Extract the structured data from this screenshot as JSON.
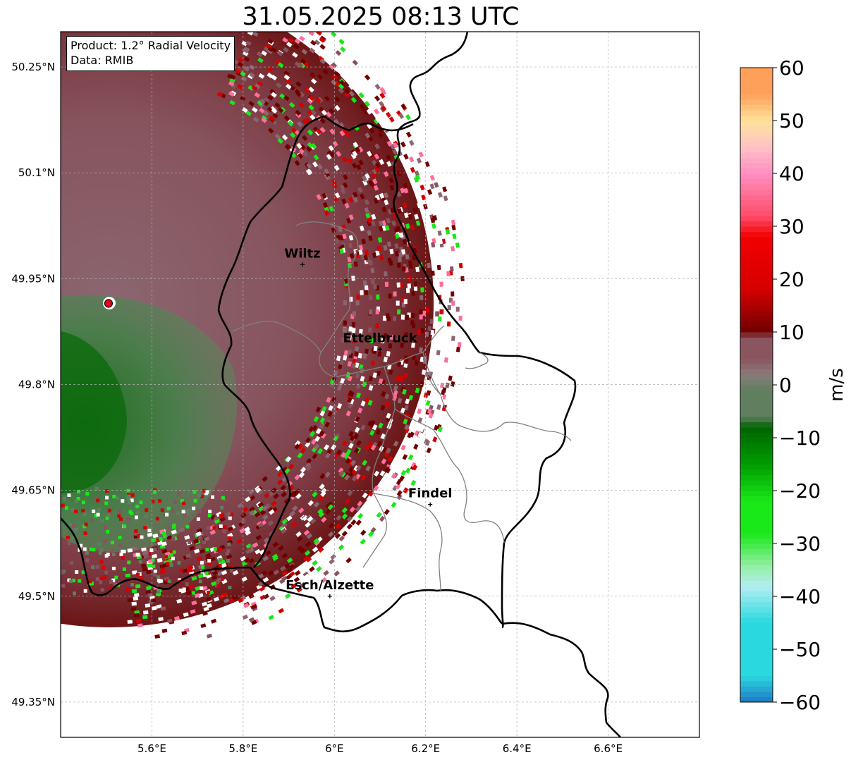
{
  "title": "31.05.2025 08:13 UTC",
  "info": {
    "product": "Product: 1.2° Radial Velocity",
    "data_source": "Data: RMIB"
  },
  "map": {
    "lon_range": [
      5.4,
      6.8
    ],
    "lat_range": [
      49.3,
      50.3
    ],
    "lon_ticks": [
      "5.6°E",
      "5.8°E",
      "6°E",
      "6.2°E",
      "6.4°E",
      "6.6°E"
    ],
    "lon_tick_values": [
      5.6,
      5.8,
      6.0,
      6.2,
      6.4,
      6.6
    ],
    "lat_ticks": [
      "50.25°N",
      "50.1°N",
      "49.95°N",
      "49.8°N",
      "49.65°N",
      "49.5°N",
      "49.35°N"
    ],
    "lat_tick_values": [
      50.25,
      50.1,
      49.95,
      49.8,
      49.65,
      49.5,
      49.35
    ],
    "grid": true,
    "radar_site": {
      "lon": 5.505,
      "lat": 49.915,
      "color": "#e8001a"
    },
    "cities": [
      {
        "name": "Wiltz",
        "lon": 5.93,
        "lat": 49.97
      },
      {
        "name": "Ettelbruck",
        "lon": 6.1,
        "lat": 49.85
      },
      {
        "name": "Findel",
        "lon": 6.21,
        "lat": 49.63
      },
      {
        "name": "Esch/Alzette",
        "lon": 5.99,
        "lat": 49.5
      }
    ]
  },
  "colorbar": {
    "label": "m/s",
    "min": -60,
    "max": 60,
    "ticks": [
      "60",
      "50",
      "40",
      "30",
      "20",
      "10",
      "0",
      "−10",
      "−20",
      "−30",
      "−40",
      "−50",
      "−60"
    ],
    "colors": {
      "cyan_blue": "#1f78c4",
      "cyan": "#2ad8e0",
      "light_cyan": "#b4eef0",
      "light_green": "#8fef9f",
      "bright_green": "#19e819",
      "green": "#009c00",
      "dark_green": "#006400",
      "gray_green": "#5f7f5f",
      "gray": "#8a7a7a",
      "mauve": "#8b5560",
      "dark_red": "#700000",
      "red": "#d40000",
      "bright_red": "#f20000",
      "pink_red": "#ff4d6a",
      "pink": "#ff8ec0",
      "light_pink": "#ffc2c8",
      "light_yellow": "#ffe29a",
      "orange": "#ffa05a"
    }
  }
}
